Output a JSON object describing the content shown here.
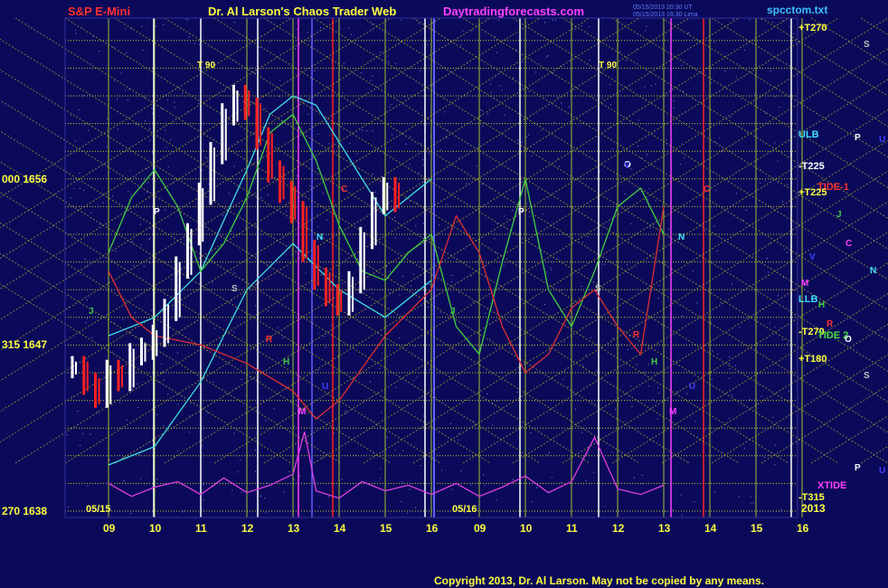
{
  "header": {
    "instrument": "S&P E-Mini",
    "title": "Dr. Al Larson's Chaos Trader Web",
    "site": "Daytradingforecasts.com",
    "file": "spcctom.txt",
    "timestamp_line1": "05/15/2013 20:30 UT",
    "timestamp_line2": "05/15/2013 16:30 Lima"
  },
  "footer": {
    "copyright": "Copyright 2013, Dr. Al Larson. May not be copied by any means."
  },
  "colors": {
    "background": "#0b0a5a",
    "instrument": "#ff3030",
    "title": "#ffff40",
    "site": "#ff40ff",
    "file": "#40c0ff",
    "copyright": "#ffff40",
    "axis_text": "#ffff40",
    "bullish_bar": "#ffffff",
    "bearish_bar": "#ff2020"
  },
  "chart_data": {
    "type": "line",
    "title": "S&P E-Mini",
    "y_axis": {
      "ylim": [
        1638,
        1665
      ],
      "ticks": [
        {
          "label": "000 1656",
          "value": 1656
        },
        {
          "label": "315 1647",
          "value": 1647
        },
        {
          "label": "270 1638",
          "value": 1638
        }
      ]
    },
    "x_axis": {
      "panels": [
        {
          "date": "05/15",
          "hours": [
            "09",
            "10",
            "11",
            "12",
            "13",
            "14",
            "15",
            "16"
          ]
        },
        {
          "date": "05/16",
          "hours": [
            "09",
            "10",
            "11",
            "12",
            "13",
            "14",
            "15",
            "16"
          ]
        }
      ],
      "year": "2013"
    },
    "right_labels": [
      "+T270",
      "ULB",
      "-T225",
      "TIDE-1",
      "+T225",
      "LLB",
      "-T270",
      "TIDE 2",
      "+T180",
      "XTIDE",
      "-T315"
    ],
    "far_right_markers": [
      "S",
      "P",
      "U",
      "J",
      "C",
      "V",
      "N",
      "M",
      "H",
      "R",
      "O",
      "S",
      "P",
      "U"
    ],
    "plot_markers": [
      "T 90",
      "T 90",
      "P",
      "P",
      "S",
      "S",
      "J",
      "J",
      "N",
      "N",
      "C",
      "C",
      "R",
      "R",
      "H",
      "H",
      "M",
      "M",
      "U",
      "U",
      "O",
      "V"
    ],
    "series": [
      {
        "name": "S&P E-Mini",
        "kind": "price_bars",
        "x": [
          9.0,
          9.25,
          9.5,
          9.75,
          10.0,
          10.25,
          10.5,
          10.75,
          11.0,
          11.25,
          11.5,
          11.75,
          12.0,
          12.25,
          12.5,
          12.75,
          13.0,
          13.25,
          13.5,
          13.75,
          14.0,
          14.25,
          14.5,
          14.75,
          15.0,
          15.25,
          15.5,
          15.75,
          16.0
        ],
        "close": [
          1645.8,
          1644.9,
          1644.2,
          1645.6,
          1645.1,
          1646.5,
          1646.8,
          1647.5,
          1648.9,
          1651.2,
          1653.0,
          1655.2,
          1657.4,
          1659.5,
          1660.5,
          1659.8,
          1658.2,
          1656.4,
          1655.3,
          1654.2,
          1652.1,
          1650.6,
          1649.7,
          1649.2,
          1650.4,
          1652.8,
          1654.7,
          1655.5,
          1654.8
        ]
      },
      {
        "name": "ULB",
        "kind": "band",
        "x": [
          9.0,
          10.0,
          11.0,
          12.0,
          12.5,
          13.0,
          13.5,
          14.0,
          15.0,
          16.0
        ],
        "y": [
          1647.5,
          1648.5,
          1651.0,
          1656.5,
          1659.5,
          1660.5,
          1660.0,
          1658.0,
          1654.0,
          1656.0
        ]
      },
      {
        "name": "LLB",
        "kind": "band",
        "x": [
          9.0,
          10.0,
          11.0,
          12.0,
          13.0,
          14.0,
          15.0,
          16.0
        ],
        "y": [
          1640.5,
          1641.5,
          1645.0,
          1650.0,
          1652.5,
          1650.0,
          1648.5,
          1650.5
        ]
      },
      {
        "name": "TIDE-1",
        "kind": "forecast",
        "x": [
          9.0,
          9.5,
          10.0,
          10.5,
          11.0,
          11.5,
          12.0,
          12.5,
          13.0,
          13.5,
          14.0,
          14.5,
          15.0,
          15.5,
          16.0,
          16.5,
          17.0,
          17.5,
          18.0,
          18.5,
          19.0,
          19.5,
          20.0,
          20.5,
          21.0
        ],
        "y": [
          1652.0,
          1655.0,
          1656.5,
          1654.5,
          1651.0,
          1652.5,
          1655.0,
          1658.5,
          1659.5,
          1657.0,
          1653.5,
          1651.0,
          1650.5,
          1652.0,
          1653.0,
          1648.0,
          1646.5,
          1651.5,
          1656.0,
          1650.0,
          1648.0,
          1651.0,
          1654.5,
          1655.5,
          1653.0
        ]
      },
      {
        "name": "TIDE 2",
        "kind": "forecast",
        "x": [
          9.0,
          9.5,
          10.0,
          11.0,
          12.0,
          13.0,
          13.5,
          14.0,
          15.0,
          16.0,
          16.5,
          17.0,
          17.5,
          18.0,
          18.5,
          19.0,
          19.5,
          20.0,
          20.5,
          21.0
        ],
        "y": [
          1651.0,
          1648.5,
          1647.5,
          1647.0,
          1646.0,
          1644.5,
          1643.0,
          1644.0,
          1647.5,
          1650.0,
          1654.0,
          1652.0,
          1648.0,
          1645.5,
          1646.5,
          1649.0,
          1650.0,
          1648.0,
          1646.5,
          1654.5
        ]
      },
      {
        "name": "XTIDE",
        "kind": "oscillator",
        "x": [
          9.0,
          9.5,
          10.0,
          10.5,
          11.0,
          11.5,
          12.0,
          12.5,
          13.0,
          13.25,
          13.5,
          14.0,
          14.5,
          15.0,
          15.5,
          16.0,
          16.5,
          17.0,
          17.5,
          18.0,
          18.5,
          19.0,
          19.5,
          20.0,
          20.5,
          21.0
        ],
        "y": [
          1639.5,
          1638.8,
          1639.3,
          1639.6,
          1638.9,
          1639.8,
          1639.0,
          1639.4,
          1640.0,
          1642.3,
          1639.1,
          1638.7,
          1639.6,
          1639.1,
          1639.4,
          1638.9,
          1639.5,
          1638.8,
          1639.3,
          1639.9,
          1639.0,
          1639.6,
          1642.0,
          1639.2,
          1638.9,
          1639.4
        ]
      }
    ],
    "grid": true,
    "legend": "none"
  }
}
